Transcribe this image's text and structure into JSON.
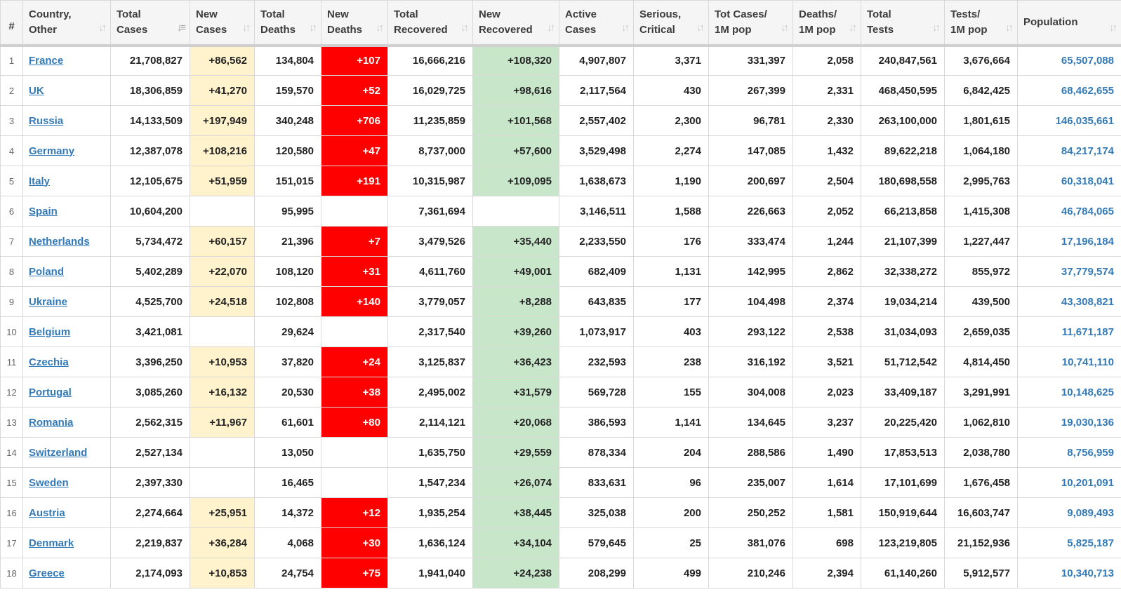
{
  "headers": {
    "num": "#",
    "country": [
      "Country,",
      "Other"
    ],
    "total_cases": [
      "Total",
      "Cases"
    ],
    "new_cases": [
      "New",
      "Cases"
    ],
    "total_deaths": [
      "Total",
      "Deaths"
    ],
    "new_deaths": [
      "New",
      "Deaths"
    ],
    "total_recovered": [
      "Total",
      "Recovered"
    ],
    "new_recovered": [
      "New",
      "Recovered"
    ],
    "active_cases": [
      "Active",
      "Cases"
    ],
    "serious": [
      "Serious,",
      "Critical"
    ],
    "tot_cases_1m": [
      "Tot Cases/",
      "1M pop"
    ],
    "deaths_1m": [
      "Deaths/",
      "1M pop"
    ],
    "total_tests": [
      "Total",
      "Tests"
    ],
    "tests_1m": [
      "Tests/",
      "1M pop"
    ],
    "population": [
      "Population",
      ""
    ]
  },
  "colors": {
    "new_cases_fill": "#fff3cd",
    "new_deaths_fill": "#ff0000",
    "new_recovered_fill": "#c8e6c9",
    "link": "#337ab7"
  },
  "rows": [
    {
      "idx": "1",
      "country": "France",
      "total_cases": "21,708,827",
      "new_cases": "+86,562",
      "total_deaths": "134,804",
      "new_deaths": "+107",
      "total_recovered": "16,666,216",
      "new_recovered": "+108,320",
      "active_cases": "4,907,807",
      "serious": "3,371",
      "tot_cases_1m": "331,397",
      "deaths_1m": "2,058",
      "total_tests": "240,847,561",
      "tests_1m": "3,676,664",
      "population": "65,507,088"
    },
    {
      "idx": "2",
      "country": "UK",
      "total_cases": "18,306,859",
      "new_cases": "+41,270",
      "total_deaths": "159,570",
      "new_deaths": "+52",
      "total_recovered": "16,029,725",
      "new_recovered": "+98,616",
      "active_cases": "2,117,564",
      "serious": "430",
      "tot_cases_1m": "267,399",
      "deaths_1m": "2,331",
      "total_tests": "468,450,595",
      "tests_1m": "6,842,425",
      "population": "68,462,655"
    },
    {
      "idx": "3",
      "country": "Russia",
      "total_cases": "14,133,509",
      "new_cases": "+197,949",
      "total_deaths": "340,248",
      "new_deaths": "+706",
      "total_recovered": "11,235,859",
      "new_recovered": "+101,568",
      "active_cases": "2,557,402",
      "serious": "2,300",
      "tot_cases_1m": "96,781",
      "deaths_1m": "2,330",
      "total_tests": "263,100,000",
      "tests_1m": "1,801,615",
      "population": "146,035,661"
    },
    {
      "idx": "4",
      "country": "Germany",
      "total_cases": "12,387,078",
      "new_cases": "+108,216",
      "total_deaths": "120,580",
      "new_deaths": "+47",
      "total_recovered": "8,737,000",
      "new_recovered": "+57,600",
      "active_cases": "3,529,498",
      "serious": "2,274",
      "tot_cases_1m": "147,085",
      "deaths_1m": "1,432",
      "total_tests": "89,622,218",
      "tests_1m": "1,064,180",
      "population": "84,217,174"
    },
    {
      "idx": "5",
      "country": "Italy",
      "total_cases": "12,105,675",
      "new_cases": "+51,959",
      "total_deaths": "151,015",
      "new_deaths": "+191",
      "total_recovered": "10,315,987",
      "new_recovered": "+109,095",
      "active_cases": "1,638,673",
      "serious": "1,190",
      "tot_cases_1m": "200,697",
      "deaths_1m": "2,504",
      "total_tests": "180,698,558",
      "tests_1m": "2,995,763",
      "population": "60,318,041"
    },
    {
      "idx": "6",
      "country": "Spain",
      "total_cases": "10,604,200",
      "new_cases": "",
      "total_deaths": "95,995",
      "new_deaths": "",
      "total_recovered": "7,361,694",
      "new_recovered": "",
      "active_cases": "3,146,511",
      "serious": "1,588",
      "tot_cases_1m": "226,663",
      "deaths_1m": "2,052",
      "total_tests": "66,213,858",
      "tests_1m": "1,415,308",
      "population": "46,784,065"
    },
    {
      "idx": "7",
      "country": "Netherlands",
      "total_cases": "5,734,472",
      "new_cases": "+60,157",
      "total_deaths": "21,396",
      "new_deaths": "+7",
      "total_recovered": "3,479,526",
      "new_recovered": "+35,440",
      "active_cases": "2,233,550",
      "serious": "176",
      "tot_cases_1m": "333,474",
      "deaths_1m": "1,244",
      "total_tests": "21,107,399",
      "tests_1m": "1,227,447",
      "population": "17,196,184"
    },
    {
      "idx": "8",
      "country": "Poland",
      "total_cases": "5,402,289",
      "new_cases": "+22,070",
      "total_deaths": "108,120",
      "new_deaths": "+31",
      "total_recovered": "4,611,760",
      "new_recovered": "+49,001",
      "active_cases": "682,409",
      "serious": "1,131",
      "tot_cases_1m": "142,995",
      "deaths_1m": "2,862",
      "total_tests": "32,338,272",
      "tests_1m": "855,972",
      "population": "37,779,574"
    },
    {
      "idx": "9",
      "country": "Ukraine",
      "total_cases": "4,525,700",
      "new_cases": "+24,518",
      "total_deaths": "102,808",
      "new_deaths": "+140",
      "total_recovered": "3,779,057",
      "new_recovered": "+8,288",
      "active_cases": "643,835",
      "serious": "177",
      "tot_cases_1m": "104,498",
      "deaths_1m": "2,374",
      "total_tests": "19,034,214",
      "tests_1m": "439,500",
      "population": "43,308,821"
    },
    {
      "idx": "10",
      "country": "Belgium",
      "total_cases": "3,421,081",
      "new_cases": "",
      "total_deaths": "29,624",
      "new_deaths": "",
      "total_recovered": "2,317,540",
      "new_recovered": "+39,260",
      "active_cases": "1,073,917",
      "serious": "403",
      "tot_cases_1m": "293,122",
      "deaths_1m": "2,538",
      "total_tests": "31,034,093",
      "tests_1m": "2,659,035",
      "population": "11,671,187"
    },
    {
      "idx": "11",
      "country": "Czechia",
      "total_cases": "3,396,250",
      "new_cases": "+10,953",
      "total_deaths": "37,820",
      "new_deaths": "+24",
      "total_recovered": "3,125,837",
      "new_recovered": "+36,423",
      "active_cases": "232,593",
      "serious": "238",
      "tot_cases_1m": "316,192",
      "deaths_1m": "3,521",
      "total_tests": "51,712,542",
      "tests_1m": "4,814,450",
      "population": "10,741,110"
    },
    {
      "idx": "12",
      "country": "Portugal",
      "total_cases": "3,085,260",
      "new_cases": "+16,132",
      "total_deaths": "20,530",
      "new_deaths": "+38",
      "total_recovered": "2,495,002",
      "new_recovered": "+31,579",
      "active_cases": "569,728",
      "serious": "155",
      "tot_cases_1m": "304,008",
      "deaths_1m": "2,023",
      "total_tests": "33,409,187",
      "tests_1m": "3,291,991",
      "population": "10,148,625"
    },
    {
      "idx": "13",
      "country": "Romania",
      "total_cases": "2,562,315",
      "new_cases": "+11,967",
      "total_deaths": "61,601",
      "new_deaths": "+80",
      "total_recovered": "2,114,121",
      "new_recovered": "+20,068",
      "active_cases": "386,593",
      "serious": "1,141",
      "tot_cases_1m": "134,645",
      "deaths_1m": "3,237",
      "total_tests": "20,225,420",
      "tests_1m": "1,062,810",
      "population": "19,030,136"
    },
    {
      "idx": "14",
      "country": "Switzerland",
      "total_cases": "2,527,134",
      "new_cases": "",
      "total_deaths": "13,050",
      "new_deaths": "",
      "total_recovered": "1,635,750",
      "new_recovered": "+29,559",
      "active_cases": "878,334",
      "serious": "204",
      "tot_cases_1m": "288,586",
      "deaths_1m": "1,490",
      "total_tests": "17,853,513",
      "tests_1m": "2,038,780",
      "population": "8,756,959"
    },
    {
      "idx": "15",
      "country": "Sweden",
      "total_cases": "2,397,330",
      "new_cases": "",
      "total_deaths": "16,465",
      "new_deaths": "",
      "total_recovered": "1,547,234",
      "new_recovered": "+26,074",
      "active_cases": "833,631",
      "serious": "96",
      "tot_cases_1m": "235,007",
      "deaths_1m": "1,614",
      "total_tests": "17,101,699",
      "tests_1m": "1,676,458",
      "population": "10,201,091"
    },
    {
      "idx": "16",
      "country": "Austria",
      "total_cases": "2,274,664",
      "new_cases": "+25,951",
      "total_deaths": "14,372",
      "new_deaths": "+12",
      "total_recovered": "1,935,254",
      "new_recovered": "+38,445",
      "active_cases": "325,038",
      "serious": "200",
      "tot_cases_1m": "250,252",
      "deaths_1m": "1,581",
      "total_tests": "150,919,644",
      "tests_1m": "16,603,747",
      "population": "9,089,493"
    },
    {
      "idx": "17",
      "country": "Denmark",
      "total_cases": "2,219,837",
      "new_cases": "+36,284",
      "total_deaths": "4,068",
      "new_deaths": "+30",
      "total_recovered": "1,636,124",
      "new_recovered": "+34,104",
      "active_cases": "579,645",
      "serious": "25",
      "tot_cases_1m": "381,076",
      "deaths_1m": "698",
      "total_tests": "123,219,805",
      "tests_1m": "21,152,936",
      "population": "5,825,187"
    },
    {
      "idx": "18",
      "country": "Greece",
      "total_cases": "2,174,093",
      "new_cases": "+10,853",
      "total_deaths": "24,754",
      "new_deaths": "+75",
      "total_recovered": "1,941,040",
      "new_recovered": "+24,238",
      "active_cases": "208,299",
      "serious": "499",
      "tot_cases_1m": "210,246",
      "deaths_1m": "2,394",
      "total_tests": "61,140,260",
      "tests_1m": "5,912,577",
      "population": "10,340,713"
    }
  ]
}
